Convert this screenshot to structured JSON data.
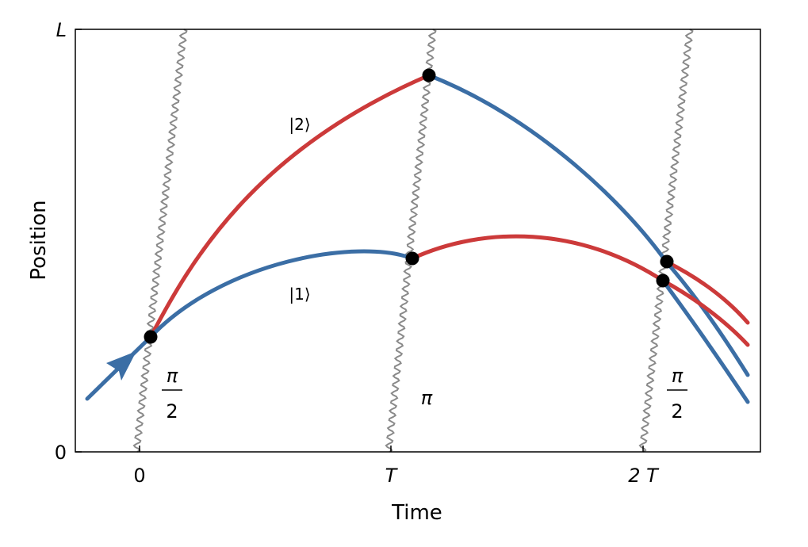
{
  "axes": {
    "xlabel": "Time",
    "ylabel": "Position",
    "x_ticks": [
      "0",
      "T",
      "2 T"
    ],
    "y_ticks": [
      "0",
      "L"
    ]
  },
  "state_labels": {
    "upper": "|2⟩",
    "lower": "|1⟩"
  },
  "pulse_labels": {
    "first": {
      "num": "π",
      "den": "2"
    },
    "second": "π",
    "third": {
      "num": "π",
      "den": "2"
    }
  },
  "colors": {
    "blue": "#3b6ea5",
    "red": "#cc3a3a",
    "wave": "#8a8a8a",
    "frame": "#000000"
  }
}
